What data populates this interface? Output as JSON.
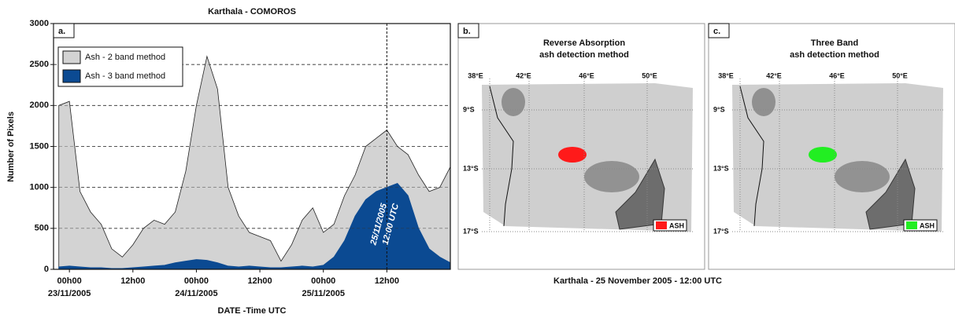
{
  "chart_data": {
    "type": "area",
    "title": "Karthala - COMOROS",
    "panel_label": "a.",
    "ylabel": "Number of Pixels",
    "xlabel": "DATE -Time UTC",
    "xlim": [
      -3,
      72
    ],
    "ylim": [
      0,
      3000
    ],
    "yticks": [
      0,
      500,
      1000,
      1500,
      2000,
      2500,
      3000
    ],
    "xticks": [
      {
        "value": 0,
        "label": "00h00"
      },
      {
        "value": 12,
        "label": "12h00"
      },
      {
        "value": 24,
        "label": "00h00"
      },
      {
        "value": 36,
        "label": "12h00"
      },
      {
        "value": 48,
        "label": "00h00"
      },
      {
        "value": 60,
        "label": "12h00"
      }
    ],
    "date_labels": [
      {
        "value": 0,
        "label": "23/11/2005"
      },
      {
        "value": 24,
        "label": "24/11/2005"
      },
      {
        "value": 48,
        "label": "25/11/2005"
      }
    ],
    "grid": true,
    "legend": "upper left",
    "marker_line": {
      "value": 60,
      "label": "25/11/2005",
      "label2": "12:00 UTC"
    },
    "x": [
      -2,
      0,
      2,
      4,
      6,
      8,
      10,
      12,
      14,
      16,
      18,
      20,
      22,
      24,
      26,
      28,
      30,
      32,
      34,
      36,
      38,
      40,
      42,
      44,
      46,
      48,
      50,
      52,
      54,
      56,
      58,
      60,
      62,
      64,
      66,
      68,
      70,
      72
    ],
    "series": [
      {
        "name": "Ash - 2 band method",
        "color": "#d3d3d3",
        "values": [
          2000,
          2050,
          950,
          700,
          550,
          250,
          150,
          300,
          500,
          600,
          550,
          700,
          1200,
          2000,
          2600,
          2200,
          1000,
          650,
          450,
          400,
          350,
          100,
          300,
          600,
          750,
          450,
          550,
          900,
          1150,
          1500,
          1600,
          1700,
          1500,
          1400,
          1150,
          950,
          1000,
          1250
        ]
      },
      {
        "name": "Ash - 3 band method",
        "color": "#0b4a92",
        "values": [
          30,
          40,
          30,
          20,
          20,
          10,
          10,
          20,
          30,
          40,
          50,
          80,
          100,
          120,
          110,
          80,
          40,
          30,
          40,
          30,
          20,
          20,
          30,
          40,
          30,
          50,
          150,
          350,
          650,
          850,
          950,
          1000,
          1050,
          900,
          500,
          250,
          150,
          80
        ]
      }
    ]
  },
  "maps": [
    {
      "label": "b.",
      "title": "Reverse Absorption",
      "subtitle": "ash detection method",
      "ash_color": "#ff1a1a",
      "legend": "ASH"
    },
    {
      "label": "c.",
      "title": "Three Band",
      "subtitle": "ash detection method",
      "ash_color": "#22ee22",
      "legend": "ASH"
    }
  ],
  "lon_labels": [
    "38°E",
    "42°E",
    "46°E",
    "50°E"
  ],
  "lat_labels": [
    "9°S",
    "13°S",
    "17°S"
  ],
  "caption": "Karthala - 25 November 2005 - 12:00 UTC"
}
